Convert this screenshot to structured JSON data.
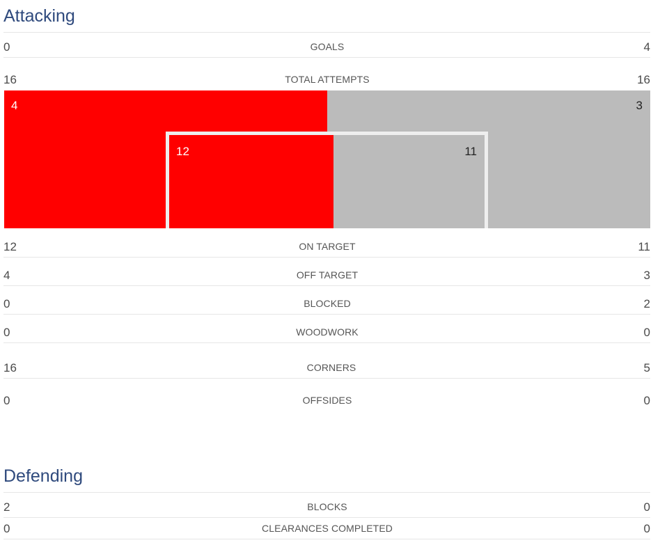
{
  "attacking": {
    "title": "Attacking",
    "goals": {
      "left": "0",
      "label": "GOALS",
      "right": "4"
    },
    "total_attempts": {
      "left": "16",
      "label": "TOTAL ATTEMPTS",
      "right": "16"
    },
    "attempts_graphic": {
      "off_target_left": "4",
      "off_target_right": "3",
      "on_target_left": "12",
      "on_target_right": "11",
      "total_share_left": 0.5,
      "on_target_share_left": 0.5217,
      "left_color": "#ff0000",
      "right_color": "#bbbbbb"
    },
    "on_target": {
      "left": "12",
      "label": "ON TARGET",
      "right": "11"
    },
    "off_target": {
      "left": "4",
      "label": "OFF TARGET",
      "right": "3"
    },
    "blocked": {
      "left": "0",
      "label": "BLOCKED",
      "right": "2"
    },
    "woodwork": {
      "left": "0",
      "label": "WOODWORK",
      "right": "0"
    },
    "corners": {
      "left": "16",
      "label": "CORNERS",
      "right": "5"
    },
    "offsides": {
      "left": "0",
      "label": "OFFSIDES",
      "right": "0"
    }
  },
  "defending": {
    "title": "Defending",
    "blocks": {
      "left": "2",
      "label": "BLOCKS",
      "right": "0"
    },
    "clearances_completed": {
      "left": "0",
      "label": "CLEARANCES COMPLETED",
      "right": "0"
    }
  },
  "colors": {
    "title": "#2f4a7d",
    "home": "#ff0000",
    "away": "#bbbbbb"
  }
}
